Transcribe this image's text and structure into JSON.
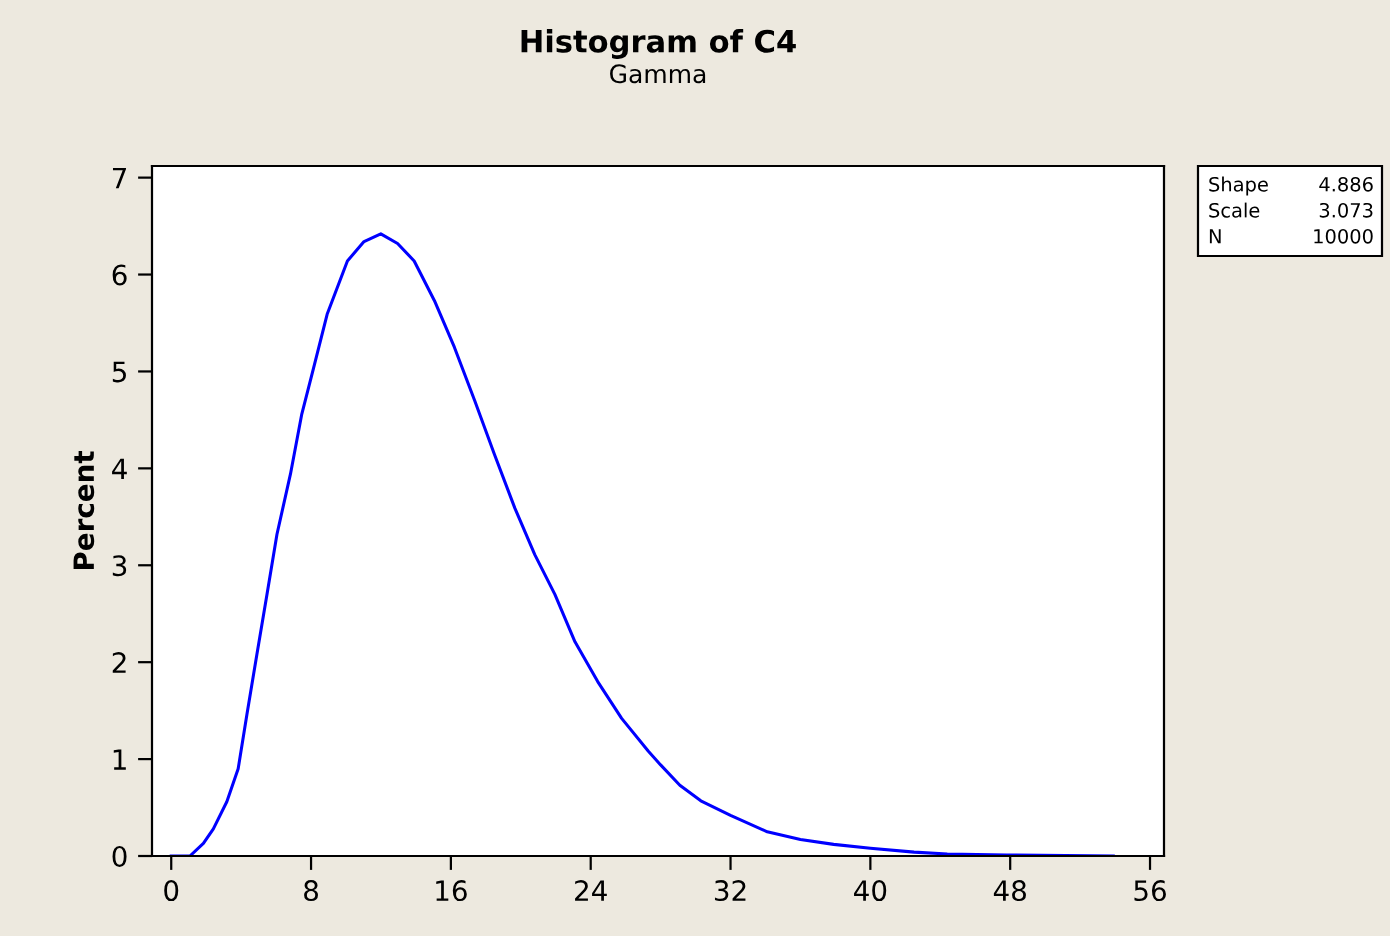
{
  "chart_data": {
    "type": "line",
    "title": "Histogram of C4",
    "subtitle": "Gamma",
    "ylabel": "Percent",
    "x": [
      0,
      1.07,
      1.84,
      2.41,
      3.18,
      3.83,
      4.33,
      4.9,
      5.48,
      6.05,
      6.82,
      7.47,
      8.15,
      8.92,
      10.08,
      11.03,
      11.99,
      12.95,
      13.9,
      15.06,
      16.2,
      17.36,
      18.5,
      19.66,
      20.8,
      21.95,
      23.1,
      24.4,
      25.77,
      27.3,
      28,
      29.1,
      30.3,
      32,
      34.1,
      36,
      37.9,
      40,
      42.5,
      44.4,
      47.8,
      53.9
    ],
    "series": [
      {
        "color": "#0000ff",
        "values": [
          0,
          0,
          0.13,
          0.28,
          0.56,
          0.9,
          1.46,
          2.08,
          2.7,
          3.32,
          3.94,
          4.56,
          5.04,
          5.59,
          6.14,
          6.34,
          6.42,
          6.32,
          6.14,
          5.73,
          5.25,
          4.7,
          4.14,
          3.59,
          3.11,
          2.7,
          2.21,
          1.8,
          1.42,
          1.08,
          0.94,
          0.73,
          0.57,
          0.42,
          0.25,
          0.17,
          0.12,
          0.08,
          0.04,
          0.02,
          0.01,
          0
        ]
      }
    ],
    "xlim": [
      -1.1,
      56.8
    ],
    "ylim": [
      0,
      7.12
    ],
    "xticks": [
      0,
      8,
      16,
      24,
      32,
      40,
      48,
      56
    ],
    "yticks": [
      0,
      1,
      2,
      3,
      4,
      5,
      6,
      7
    ],
    "grid": false,
    "legend": false,
    "annotations": [
      "Shape 4.886",
      "Scale 3.073",
      "N 10000"
    ]
  }
}
